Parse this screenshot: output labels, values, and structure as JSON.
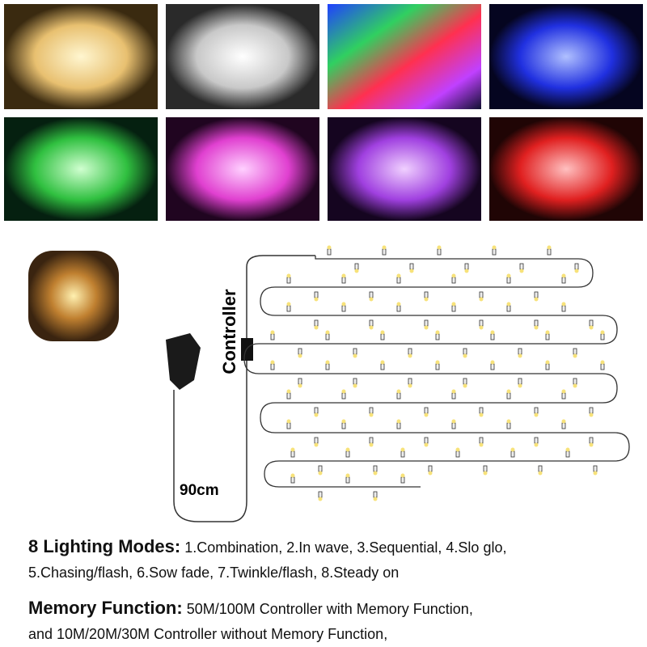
{
  "diagram": {
    "controller": "Controller",
    "cord_length": "90cm"
  },
  "features": [
    {
      "title": "8 Lighting Modes:",
      "lines": [
        "1.Combination, 2.In wave, 3.Sequential, 4.Slo glo,",
        "5.Chasing/flash, 6.Sow fade, 7.Twinkle/flash, 8.Steady on"
      ]
    },
    {
      "title": "Memory Function:",
      "lines": [
        "50M/100M Controller with Memory Function,",
        "and 10M/20M/30M Controller without Memory Function,"
      ]
    }
  ]
}
